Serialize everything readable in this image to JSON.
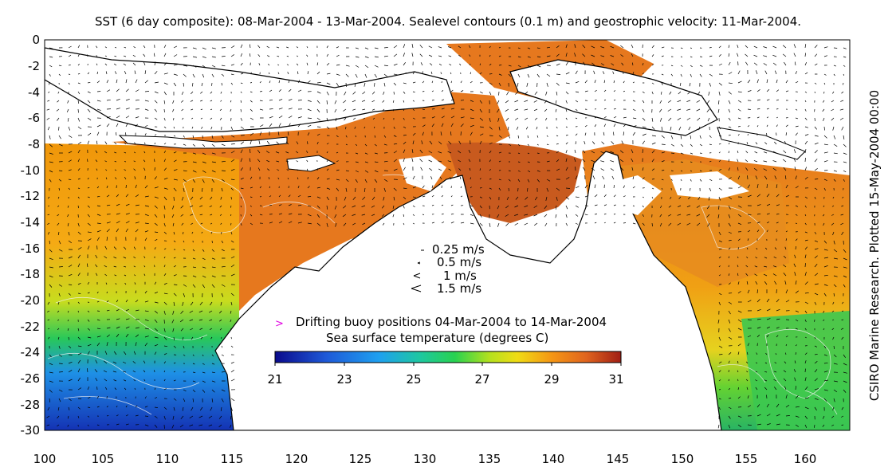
{
  "title": "SST (6 day composite): 08-Mar-2004 - 13-Mar-2004. Sealevel contours (0.1 m) and geostrophic velocity: 11-Mar-2004.",
  "credit": "CSIRO Marine Research. Plotted 15-May-2004 00:00",
  "map_extent": {
    "lon_min": 100,
    "lon_max": 164,
    "lat_min": -30,
    "lat_max": 0
  },
  "y_ticks": [
    "0",
    "-2",
    "-4",
    "-6",
    "-8",
    "-10",
    "-12",
    "-14",
    "-16",
    "-18",
    "-20",
    "-22",
    "-24",
    "-26",
    "-28",
    "-30"
  ],
  "x_ticks": [
    "100",
    "105",
    "110",
    "115",
    "120",
    "125",
    "130",
    "135",
    "140",
    "145",
    "150",
    "155",
    "160"
  ],
  "velocity_legend": [
    "0.25 m/s",
    "0.5 m/s",
    "1 m/s",
    "1.5 m/s"
  ],
  "buoy_legend": "Drifting buoy positions 04-Mar-2004 to 14-Mar-2004",
  "colorbar": {
    "label": "Sea surface temperature (degrees C)",
    "ticks": [
      "21",
      "23",
      "25",
      "27",
      "29",
      "31"
    ],
    "min": 21,
    "max": 31,
    "colors": [
      "#0a0a8c",
      "#1a3cd0",
      "#1e8cf0",
      "#20c8c8",
      "#2ad25a",
      "#9ade1e",
      "#f0e61e",
      "#f5a50a",
      "#e6641e",
      "#a51e14"
    ]
  },
  "colors": {
    "buoy": "#e000e0",
    "land": "#ffffff",
    "cloud": "#ffffff"
  }
}
